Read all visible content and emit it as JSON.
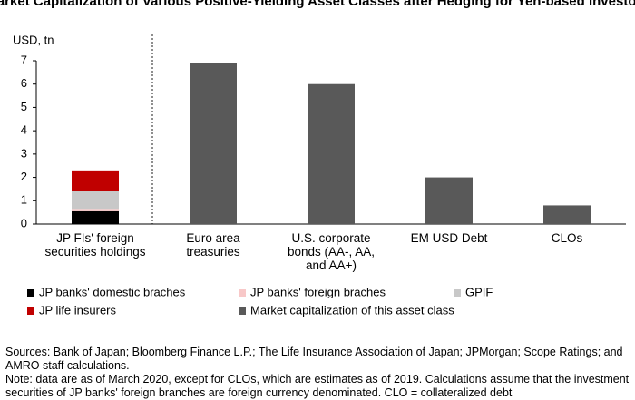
{
  "chart_data": {
    "type": "bar",
    "stacked": true,
    "title": "Market Capitalization of Various Positive-Yielding Asset Classes after Hedging for Yen-based Investors",
    "y_label": "USD, tn",
    "categories": [
      "JP FIs' foreign\nsecurities holdings",
      "Euro area\ntreasuries",
      "U.S. corporate\nbonds (AA-, AA,\nand AA+)",
      "EM USD Debt",
      "CLOs"
    ],
    "series": [
      {
        "name": "JP banks' domestic braches",
        "color": "#000000",
        "values": [
          0.55,
          null,
          null,
          null,
          null
        ]
      },
      {
        "name": "JP banks' foreign braches",
        "color": "#f8c8c8",
        "values": [
          0.1,
          null,
          null,
          null,
          null
        ]
      },
      {
        "name": "GPIF",
        "color": "#c8c8c8",
        "values": [
          0.75,
          null,
          null,
          null,
          null
        ]
      },
      {
        "name": "JP life insurers",
        "color": "#c00000",
        "values": [
          0.9,
          null,
          null,
          null,
          null
        ]
      },
      {
        "name": "Market capitalization of this asset class",
        "color": "#595959",
        "values": [
          null,
          6.9,
          6.0,
          2.0,
          0.8
        ]
      }
    ],
    "ylim": [
      0,
      7
    ],
    "yticks": [
      0,
      1,
      2,
      3,
      4,
      5,
      6,
      7
    ],
    "sources": "Sources: Bank of Japan; Bloomberg Finance L.P.; The Life Insurance Association of Japan; JPMorgan; Scope Ratings; and AMRO staff calculations.",
    "note": "Note: data are as of March 2020, except for CLOs, which are estimates as of 2019. Calculations assume that the investment securities of JP banks' foreign branches are foreign currency denominated. CLO = collateralized debt"
  }
}
